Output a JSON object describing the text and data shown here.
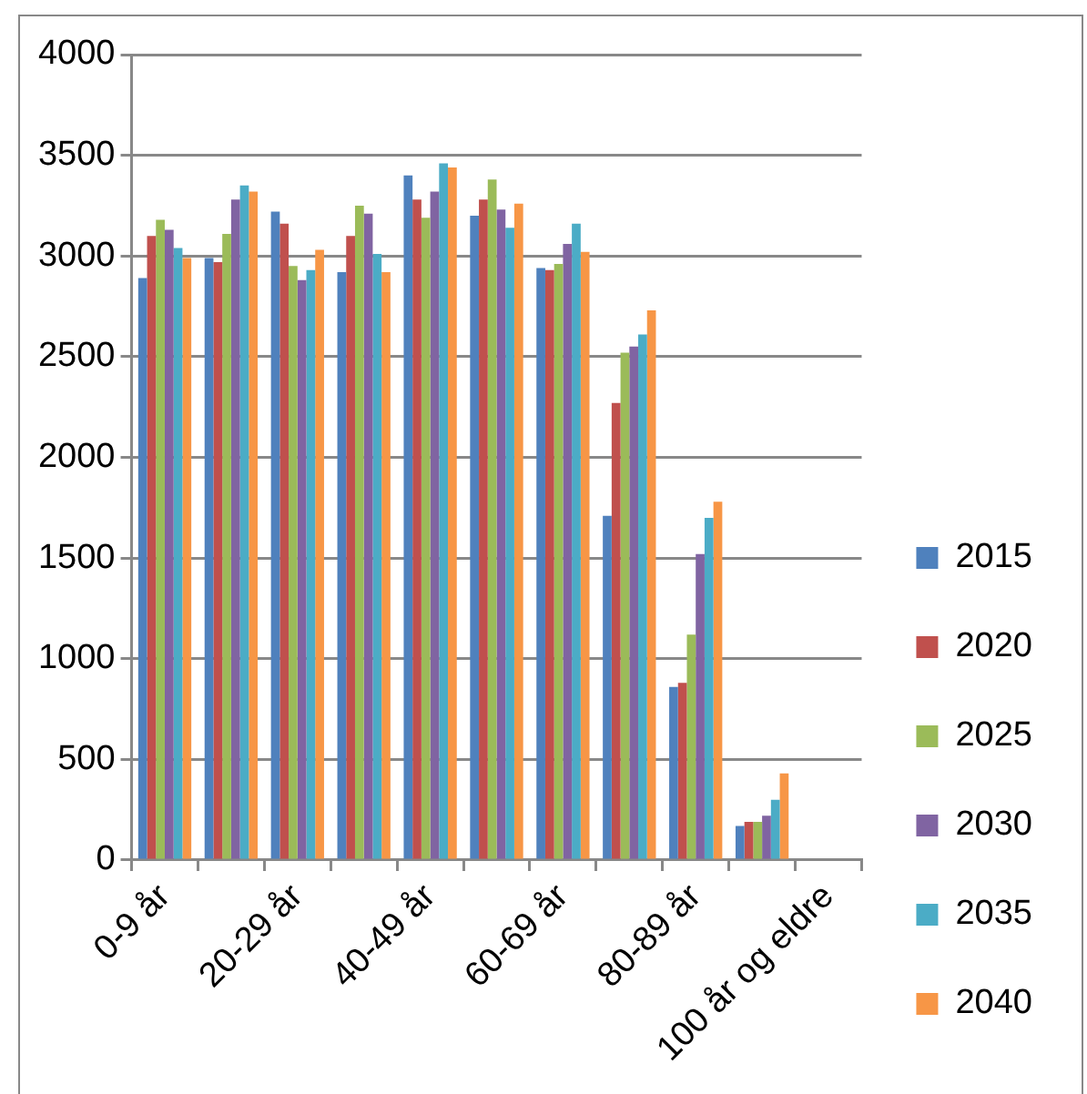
{
  "chart_data": {
    "type": "bar",
    "categories": [
      "0-9 år",
      null,
      "20-29 år",
      null,
      "40-49 år",
      null,
      "60-69 år",
      null,
      "80-89 år",
      null,
      "100 år og eldre"
    ],
    "series": [
      {
        "name": "2015",
        "color": "#4f81bd",
        "values": [
          2890,
          2990,
          3220,
          2920,
          3400,
          3200,
          2940,
          1710,
          860,
          170,
          0
        ]
      },
      {
        "name": "2020",
        "color": "#c0504d",
        "values": [
          3100,
          2970,
          3160,
          3100,
          3280,
          3280,
          2930,
          2270,
          880,
          190,
          0
        ]
      },
      {
        "name": "2025",
        "color": "#9bbb59",
        "values": [
          3180,
          3110,
          2950,
          3250,
          3190,
          3380,
          2960,
          2520,
          1120,
          190,
          0
        ]
      },
      {
        "name": "2030",
        "color": "#8064a2",
        "values": [
          3130,
          3280,
          2880,
          3210,
          3320,
          3230,
          3060,
          2550,
          1520,
          220,
          0
        ]
      },
      {
        "name": "2035",
        "color": "#4bacc6",
        "values": [
          3040,
          3350,
          2930,
          3010,
          3460,
          3140,
          3160,
          2610,
          1700,
          300,
          0
        ]
      },
      {
        "name": "2040",
        "color": "#f79646",
        "values": [
          2990,
          3320,
          3030,
          2920,
          3440,
          3260,
          3020,
          2730,
          1780,
          430,
          0
        ]
      }
    ],
    "ylim": [
      0,
      4000
    ],
    "yticks": [
      0,
      500,
      1000,
      1500,
      2000,
      2500,
      3000,
      3500,
      4000
    ],
    "grid": "y",
    "legend": "right"
  }
}
